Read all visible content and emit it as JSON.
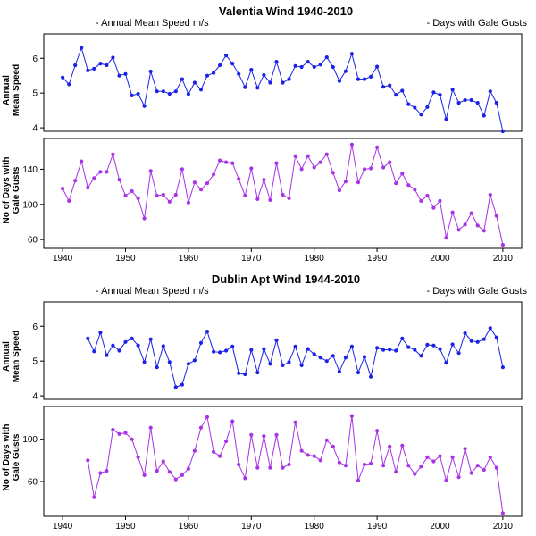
{
  "colors": {
    "speed": "#1a22e6",
    "gust": "#a832e6"
  },
  "chart_data": [
    {
      "type": "line",
      "title": "Valentia Wind 1940-2010",
      "legend_left": "- Annual Mean Speed m/s",
      "legend_right": "- Days with Gale Gusts",
      "speed_panel": {
        "ylabel_line1": "Annual",
        "ylabel_line2": "Mean Speed",
        "ylim": [
          3.9,
          6.7
        ],
        "yticks": [
          "4",
          "5",
          "6"
        ]
      },
      "gust_panel": {
        "ylabel_line1": "No of Days with",
        "ylabel_line2": "Gale Gusts",
        "ylim": [
          50,
          175
        ],
        "yticks": [
          "60",
          "100",
          "140"
        ]
      },
      "xlim": [
        1937,
        2013
      ],
      "xticks": [
        "1940",
        "1950",
        "1960",
        "1970",
        "1980",
        "1990",
        "2000",
        "2010"
      ],
      "series": [
        {
          "name": "Annual Mean Speed m/s",
          "x": [
            1940,
            1941,
            1942,
            1943,
            1944,
            1945,
            1946,
            1947,
            1948,
            1949,
            1950,
            1951,
            1952,
            1953,
            1954,
            1955,
            1956,
            1957,
            1958,
            1959,
            1960,
            1961,
            1962,
            1963,
            1964,
            1965,
            1966,
            1967,
            1968,
            1969,
            1970,
            1971,
            1972,
            1973,
            1974,
            1975,
            1976,
            1977,
            1978,
            1979,
            1980,
            1981,
            1982,
            1983,
            1984,
            1985,
            1986,
            1987,
            1988,
            1989,
            1990,
            1991,
            1992,
            1993,
            1994,
            1995,
            1996,
            1997,
            1998,
            1999,
            2000,
            2001,
            2002,
            2003,
            2004,
            2005,
            2006,
            2007,
            2008,
            2009,
            2010
          ],
          "values": [
            5.45,
            5.25,
            5.8,
            6.3,
            5.65,
            5.7,
            5.85,
            5.8,
            6.02,
            5.5,
            5.55,
            4.93,
            4.98,
            4.63,
            5.62,
            5.05,
            5.05,
            4.98,
            5.05,
            5.4,
            4.97,
            5.3,
            5.1,
            5.5,
            5.58,
            5.8,
            6.08,
            5.85,
            5.55,
            5.17,
            5.67,
            5.15,
            5.52,
            5.3,
            5.9,
            5.3,
            5.4,
            5.78,
            5.75,
            5.9,
            5.75,
            5.82,
            6.03,
            5.75,
            5.35,
            5.63,
            6.13,
            5.4,
            5.4,
            5.47,
            5.76,
            5.18,
            5.22,
            4.95,
            5.07,
            4.68,
            4.58,
            4.38,
            4.6,
            5.02,
            4.95,
            4.25,
            5.1,
            4.72,
            4.8,
            4.8,
            4.72,
            4.35,
            5.05,
            4.72,
            3.9
          ]
        },
        {
          "name": "Days with Gale Gusts",
          "x": [
            1940,
            1941,
            1942,
            1943,
            1944,
            1945,
            1946,
            1947,
            1948,
            1949,
            1950,
            1951,
            1952,
            1953,
            1954,
            1955,
            1956,
            1957,
            1958,
            1959,
            1960,
            1961,
            1962,
            1963,
            1964,
            1965,
            1966,
            1967,
            1968,
            1969,
            1970,
            1971,
            1972,
            1973,
            1974,
            1975,
            1976,
            1977,
            1978,
            1979,
            1980,
            1981,
            1982,
            1983,
            1984,
            1985,
            1986,
            1987,
            1988,
            1989,
            1990,
            1991,
            1992,
            1993,
            1994,
            1995,
            1996,
            1997,
            1998,
            1999,
            2000,
            2001,
            2002,
            2003,
            2004,
            2005,
            2006,
            2007,
            2008,
            2009,
            2010
          ],
          "values": [
            118,
            104,
            127,
            149,
            119,
            130,
            137,
            137,
            157,
            128,
            110,
            115,
            107,
            84,
            138,
            110,
            111,
            103,
            111,
            140,
            102,
            125,
            117,
            124,
            134,
            150,
            148,
            147,
            129,
            110,
            141,
            106,
            128,
            105,
            147,
            111,
            107,
            155,
            140,
            155,
            142,
            148,
            157,
            136,
            116,
            126,
            168,
            125,
            140,
            141,
            165,
            142,
            148,
            124,
            135,
            122,
            117,
            104,
            110,
            96,
            104,
            62,
            91,
            71,
            77,
            90,
            76,
            70,
            111,
            87,
            54
          ]
        }
      ]
    },
    {
      "type": "line",
      "title": "Dublin Apt Wind 1944-2010",
      "legend_left": "- Annual Mean Speed m/s",
      "legend_right": "- Days with Gale Gusts",
      "speed_panel": {
        "ylabel_line1": "Annual",
        "ylabel_line2": "Mean Speed",
        "ylim": [
          3.9,
          6.7
        ],
        "yticks": [
          "4",
          "5",
          "6"
        ]
      },
      "gust_panel": {
        "ylabel_line1": "No of Days with",
        "ylabel_line2": "Gale Gusts",
        "ylim": [
          27,
          131
        ],
        "yticks": [
          "60",
          "100"
        ]
      },
      "xlim": [
        1937,
        2013
      ],
      "xticks": [
        "1940",
        "1950",
        "1960",
        "1970",
        "1980",
        "1990",
        "2000",
        "2010"
      ],
      "series": [
        {
          "name": "Annual Mean Speed m/s",
          "x": [
            1944,
            1945,
            1946,
            1947,
            1948,
            1949,
            1950,
            1951,
            1952,
            1953,
            1954,
            1955,
            1956,
            1957,
            1958,
            1959,
            1960,
            1961,
            1962,
            1963,
            1964,
            1965,
            1966,
            1967,
            1968,
            1969,
            1970,
            1971,
            1972,
            1973,
            1974,
            1975,
            1976,
            1977,
            1978,
            1979,
            1980,
            1981,
            1982,
            1983,
            1984,
            1985,
            1986,
            1987,
            1988,
            1989,
            1990,
            1991,
            1992,
            1993,
            1994,
            1995,
            1996,
            1997,
            1998,
            1999,
            2000,
            2001,
            2002,
            2003,
            2004,
            2005,
            2006,
            2007,
            2008,
            2009,
            2010
          ],
          "values": [
            5.65,
            5.28,
            5.82,
            5.17,
            5.45,
            5.3,
            5.55,
            5.65,
            5.45,
            4.97,
            5.63,
            4.82,
            5.43,
            4.97,
            4.25,
            4.32,
            4.92,
            5.02,
            5.52,
            5.85,
            5.27,
            5.25,
            5.3,
            5.42,
            4.65,
            4.62,
            5.32,
            4.67,
            5.35,
            4.92,
            5.6,
            4.88,
            4.97,
            5.42,
            4.88,
            5.35,
            5.2,
            5.1,
            5.0,
            5.15,
            4.7,
            5.1,
            5.42,
            4.67,
            5.12,
            4.55,
            5.38,
            5.32,
            5.33,
            5.3,
            5.65,
            5.4,
            5.32,
            5.15,
            5.47,
            5.45,
            5.35,
            4.95,
            5.48,
            5.23,
            5.8,
            5.58,
            5.55,
            5.63,
            5.95,
            5.68,
            4.82
          ]
        },
        {
          "name": "Days with Gale Gusts",
          "x": [
            1944,
            1945,
            1946,
            1947,
            1948,
            1949,
            1950,
            1951,
            1952,
            1953,
            1954,
            1955,
            1956,
            1957,
            1958,
            1959,
            1960,
            1961,
            1962,
            1963,
            1964,
            1965,
            1966,
            1967,
            1968,
            1969,
            1970,
            1971,
            1972,
            1973,
            1974,
            1975,
            1976,
            1977,
            1978,
            1979,
            1980,
            1981,
            1982,
            1983,
            1984,
            1985,
            1986,
            1987,
            1988,
            1989,
            1990,
            1991,
            1992,
            1993,
            1994,
            1995,
            1996,
            1997,
            1998,
            1999,
            2000,
            2001,
            2002,
            2003,
            2004,
            2005,
            2006,
            2007,
            2008,
            2009,
            2010
          ],
          "values": [
            80,
            45,
            68,
            70,
            109,
            105,
            106,
            100,
            83,
            66,
            111,
            70,
            79,
            69,
            62,
            66,
            72,
            89,
            111,
            121,
            88,
            84,
            98,
            117,
            76,
            63,
            104,
            73,
            103,
            73,
            104,
            73,
            76,
            116,
            89,
            85,
            84,
            80,
            99,
            93,
            78,
            75,
            122,
            61,
            76,
            77,
            108,
            75,
            93,
            69,
            94,
            75,
            67,
            74,
            83,
            79,
            84,
            61,
            83,
            64,
            91,
            68,
            75,
            71,
            83,
            73,
            30
          ]
        }
      ]
    }
  ]
}
